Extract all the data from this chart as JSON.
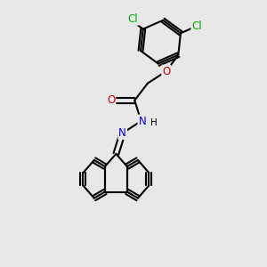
{
  "background_color": "#e8e8e8",
  "atom_colors": {
    "C": "#000000",
    "N": "#0000cc",
    "O": "#cc0000",
    "Cl": "#00aa00",
    "H": "#000000"
  },
  "bond_color": "#000000",
  "bond_width": 1.5,
  "font_size": 8.5
}
